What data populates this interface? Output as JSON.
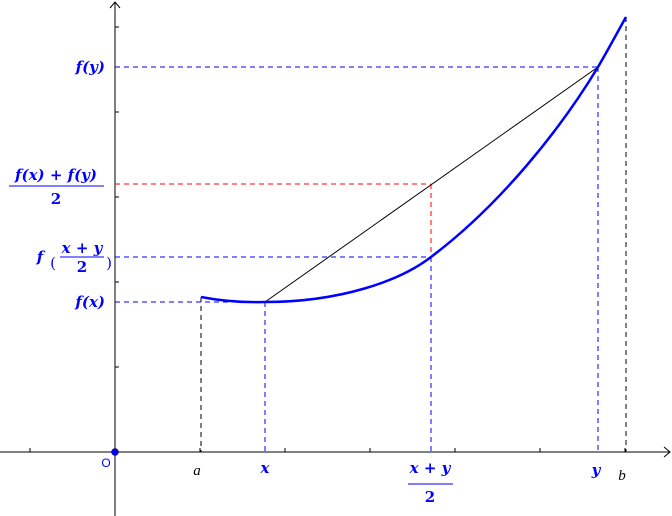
{
  "colors": {
    "curve": "#0000ff",
    "guide_blue": "#0000ff",
    "guide_red": "#ff0000",
    "guide_black": "#000000",
    "chord": "#000000"
  },
  "y_labels": {
    "f_y": "f(y)",
    "mean_of_values_num": "f(x) + f(y)",
    "mean_of_values_den": "2",
    "f_of_mid_f": "f",
    "f_of_mid_num": "x + y",
    "f_of_mid_den": "2",
    "f_x": "f(x)"
  },
  "x_labels": {
    "origin": "O",
    "a": "a",
    "x": "x",
    "mid_num": "x + y",
    "mid_den": "2",
    "y": "y",
    "b": "b"
  }
}
